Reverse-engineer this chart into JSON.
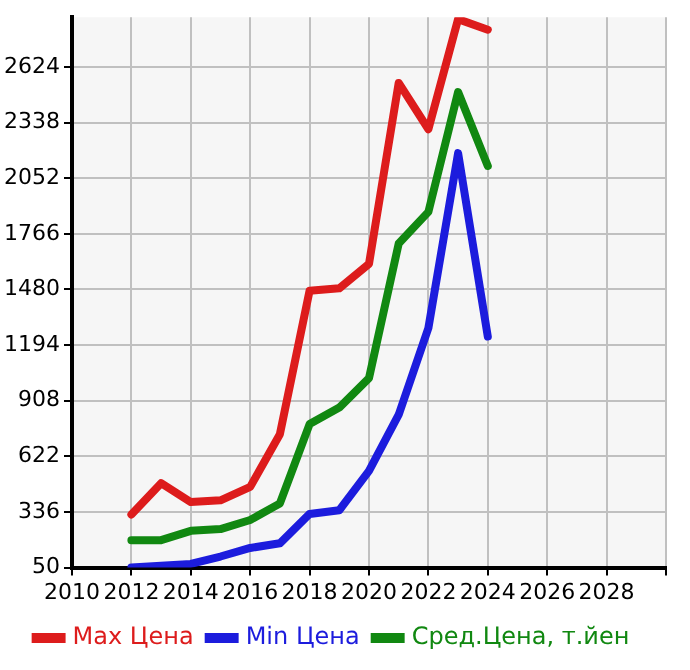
{
  "chart_data": {
    "type": "line",
    "x": [
      2012,
      2013,
      2014,
      2015,
      2016,
      2017,
      2018,
      2019,
      2020,
      2021,
      2022,
      2023,
      2024
    ],
    "series": [
      {
        "name": "Max Цена",
        "color": "#dd1c1c",
        "values": [
          323,
          484,
          387,
          396,
          465,
          736,
          1474,
          1486,
          1612,
          2542,
          2304,
          2870,
          2816
        ]
      },
      {
        "name": "Min Цена",
        "color": "#1c1cdd",
        "values": [
          50,
          59,
          69,
          107,
          151,
          175,
          326,
          345,
          547,
          836,
          1282,
          2181,
          1238
        ]
      },
      {
        "name": "Сред.Цена, т.йен",
        "color": "#118811",
        "values": [
          191,
          191,
          239,
          248,
          295,
          380,
          788,
          873,
          1024,
          1716,
          1879,
          2495,
          2115
        ]
      }
    ],
    "xlim": [
      2010,
      2030
    ],
    "xticks": [
      2010,
      2012,
      2014,
      2016,
      2018,
      2020,
      2022,
      2024,
      2026,
      2028,
      {
        "value": 2030,
        "label": null
      }
    ],
    "ylim": [
      50,
      2880
    ],
    "yticks": [
      50,
      336,
      622,
      908,
      1194,
      1480,
      1766,
      2052,
      2338,
      2624
    ],
    "grid": true,
    "legend": "bottom",
    "marker": "none",
    "line_style": "solid"
  }
}
